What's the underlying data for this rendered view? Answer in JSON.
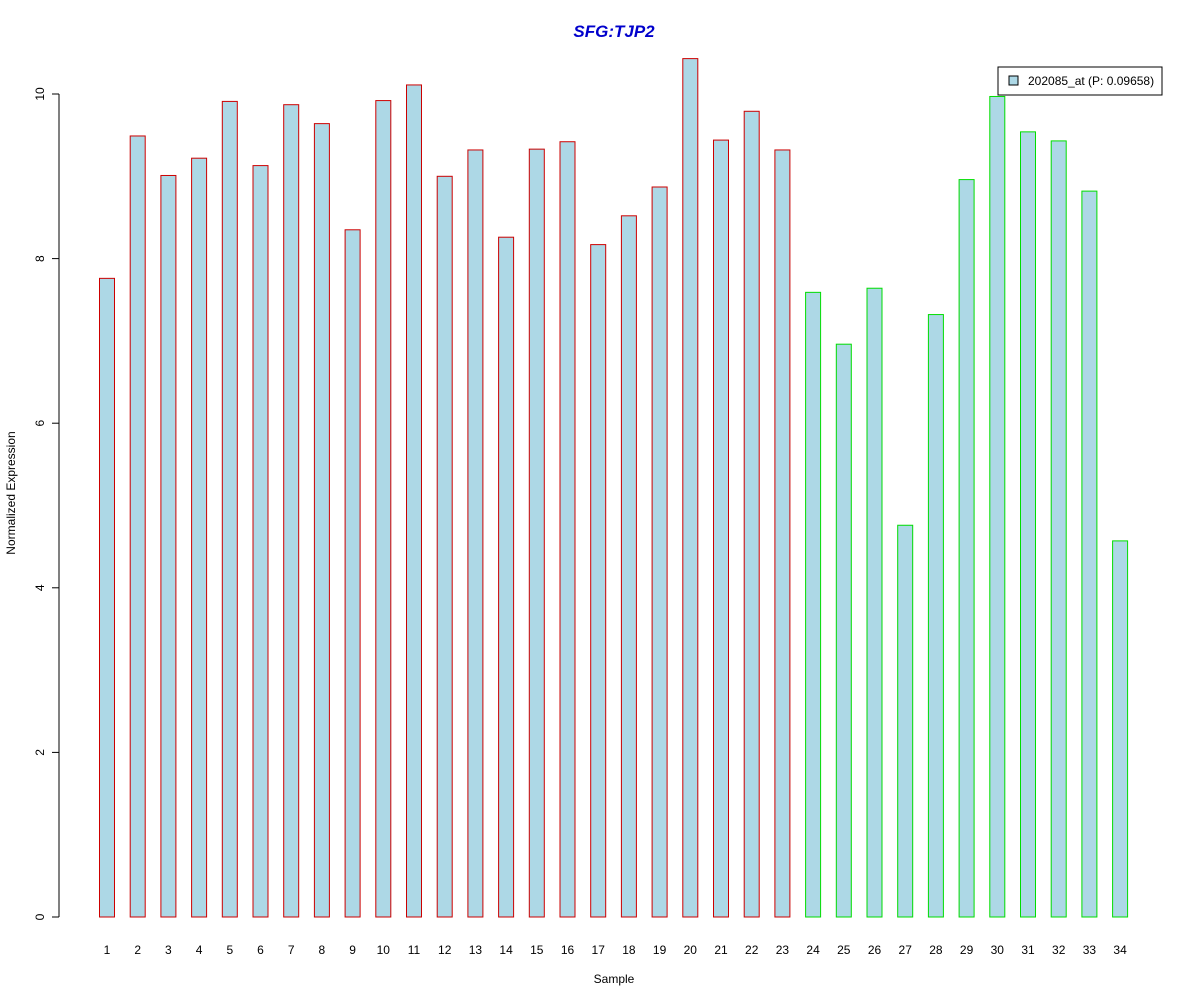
{
  "chart_data": {
    "type": "bar",
    "title": "SFG:TJP2",
    "xlabel": "Sample",
    "ylabel": "Normalized Expression",
    "ylim": [
      0,
      10.5
    ],
    "yticks": [
      0,
      2,
      4,
      6,
      8,
      10
    ],
    "categories": [
      "1",
      "2",
      "3",
      "4",
      "5",
      "6",
      "7",
      "8",
      "9",
      "10",
      "11",
      "12",
      "13",
      "14",
      "15",
      "16",
      "17",
      "18",
      "19",
      "20",
      "21",
      "22",
      "23",
      "24",
      "25",
      "26",
      "27",
      "28",
      "29",
      "30",
      "31",
      "32",
      "33",
      "34"
    ],
    "series": [
      {
        "name": "202085_at (P: 0.09658)",
        "fill": "#add8e6",
        "values": [
          7.76,
          9.49,
          9.01,
          9.22,
          9.91,
          9.13,
          9.87,
          9.64,
          8.35,
          9.92,
          10.11,
          9.0,
          9.32,
          8.26,
          9.33,
          9.42,
          8.17,
          8.52,
          8.87,
          10.43,
          9.44,
          9.79,
          9.32,
          7.59,
          6.96,
          7.64,
          4.76,
          7.32,
          8.96,
          9.97,
          9.54,
          9.43,
          8.82,
          4.57
        ]
      }
    ],
    "group_border_colors": [
      "#cc0000",
      "#cc0000",
      "#cc0000",
      "#cc0000",
      "#cc0000",
      "#cc0000",
      "#cc0000",
      "#cc0000",
      "#cc0000",
      "#cc0000",
      "#cc0000",
      "#cc0000",
      "#cc0000",
      "#cc0000",
      "#cc0000",
      "#cc0000",
      "#cc0000",
      "#cc0000",
      "#cc0000",
      "#cc0000",
      "#cc0000",
      "#cc0000",
      "#cc0000",
      "#00dd00",
      "#00dd00",
      "#00dd00",
      "#00dd00",
      "#00dd00",
      "#00dd00",
      "#00dd00",
      "#00dd00",
      "#00dd00",
      "#00dd00",
      "#00dd00"
    ],
    "legend": {
      "position": "top-right",
      "label": "202085_at (P: 0.09658)"
    },
    "grid": false
  }
}
